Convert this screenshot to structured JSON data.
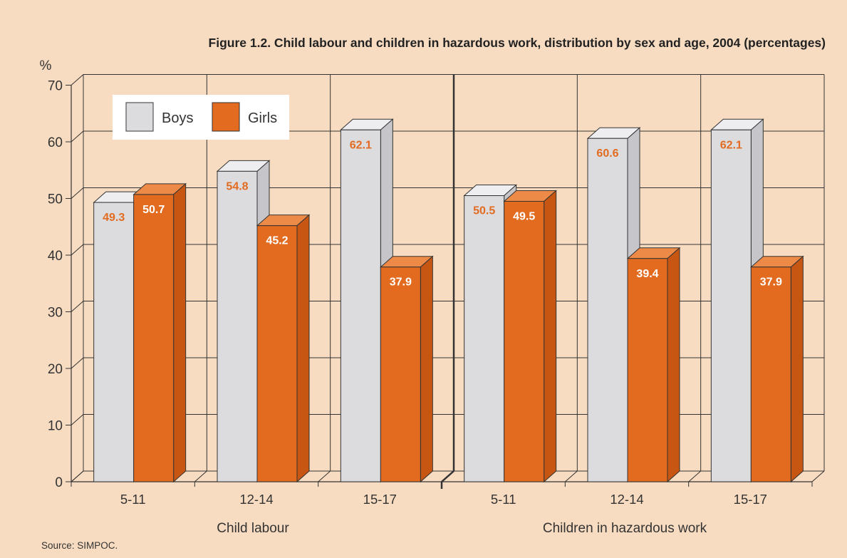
{
  "figure": {
    "title": "Figure 1.2.  Child labour and children in hazardous work, distribution by sex and age, 2004 (percentages)",
    "source": "Source: SIMPOC."
  },
  "colors": {
    "background": "#f8dcc1",
    "boys_front": "#dcdcdf",
    "boys_side": "#c6c6ca",
    "boys_top": "#eeeef0",
    "girls_front": "#e26b1f",
    "girls_side": "#c75612",
    "girls_top": "#ee8a48",
    "label_color": "#e26b1f",
    "label_on_orange": "#ffffff",
    "gridline": "#333333"
  },
  "chart_data": {
    "type": "bar",
    "title": "Figure 1.2.  Child labour and children in hazardous work, distribution by sex and age, 2004 (percentages)",
    "ylabel": "%",
    "ylim": [
      0,
      70
    ],
    "yticks": [
      "0",
      "10",
      "20",
      "30",
      "40",
      "50",
      "60",
      "70"
    ],
    "grid": true,
    "legend_position": "top-left",
    "groups": [
      "Child labour",
      "Children in hazardous work"
    ],
    "categories": [
      "5-11",
      "12-14",
      "15-17",
      "5-11",
      "12-14",
      "15-17"
    ],
    "series": [
      {
        "name": "Boys",
        "values": [
          49.3,
          54.8,
          62.1,
          50.5,
          60.6,
          62.1
        ],
        "labels": [
          "49.3",
          "54.8",
          "62.1",
          "50.5",
          "60.6",
          "62.1"
        ]
      },
      {
        "name": "Girls",
        "values": [
          50.7,
          45.2,
          37.9,
          49.5,
          39.4,
          37.9
        ],
        "labels": [
          "50.7",
          "45.2",
          "37.9",
          "49.5",
          "39.4",
          "37.9"
        ]
      }
    ]
  }
}
